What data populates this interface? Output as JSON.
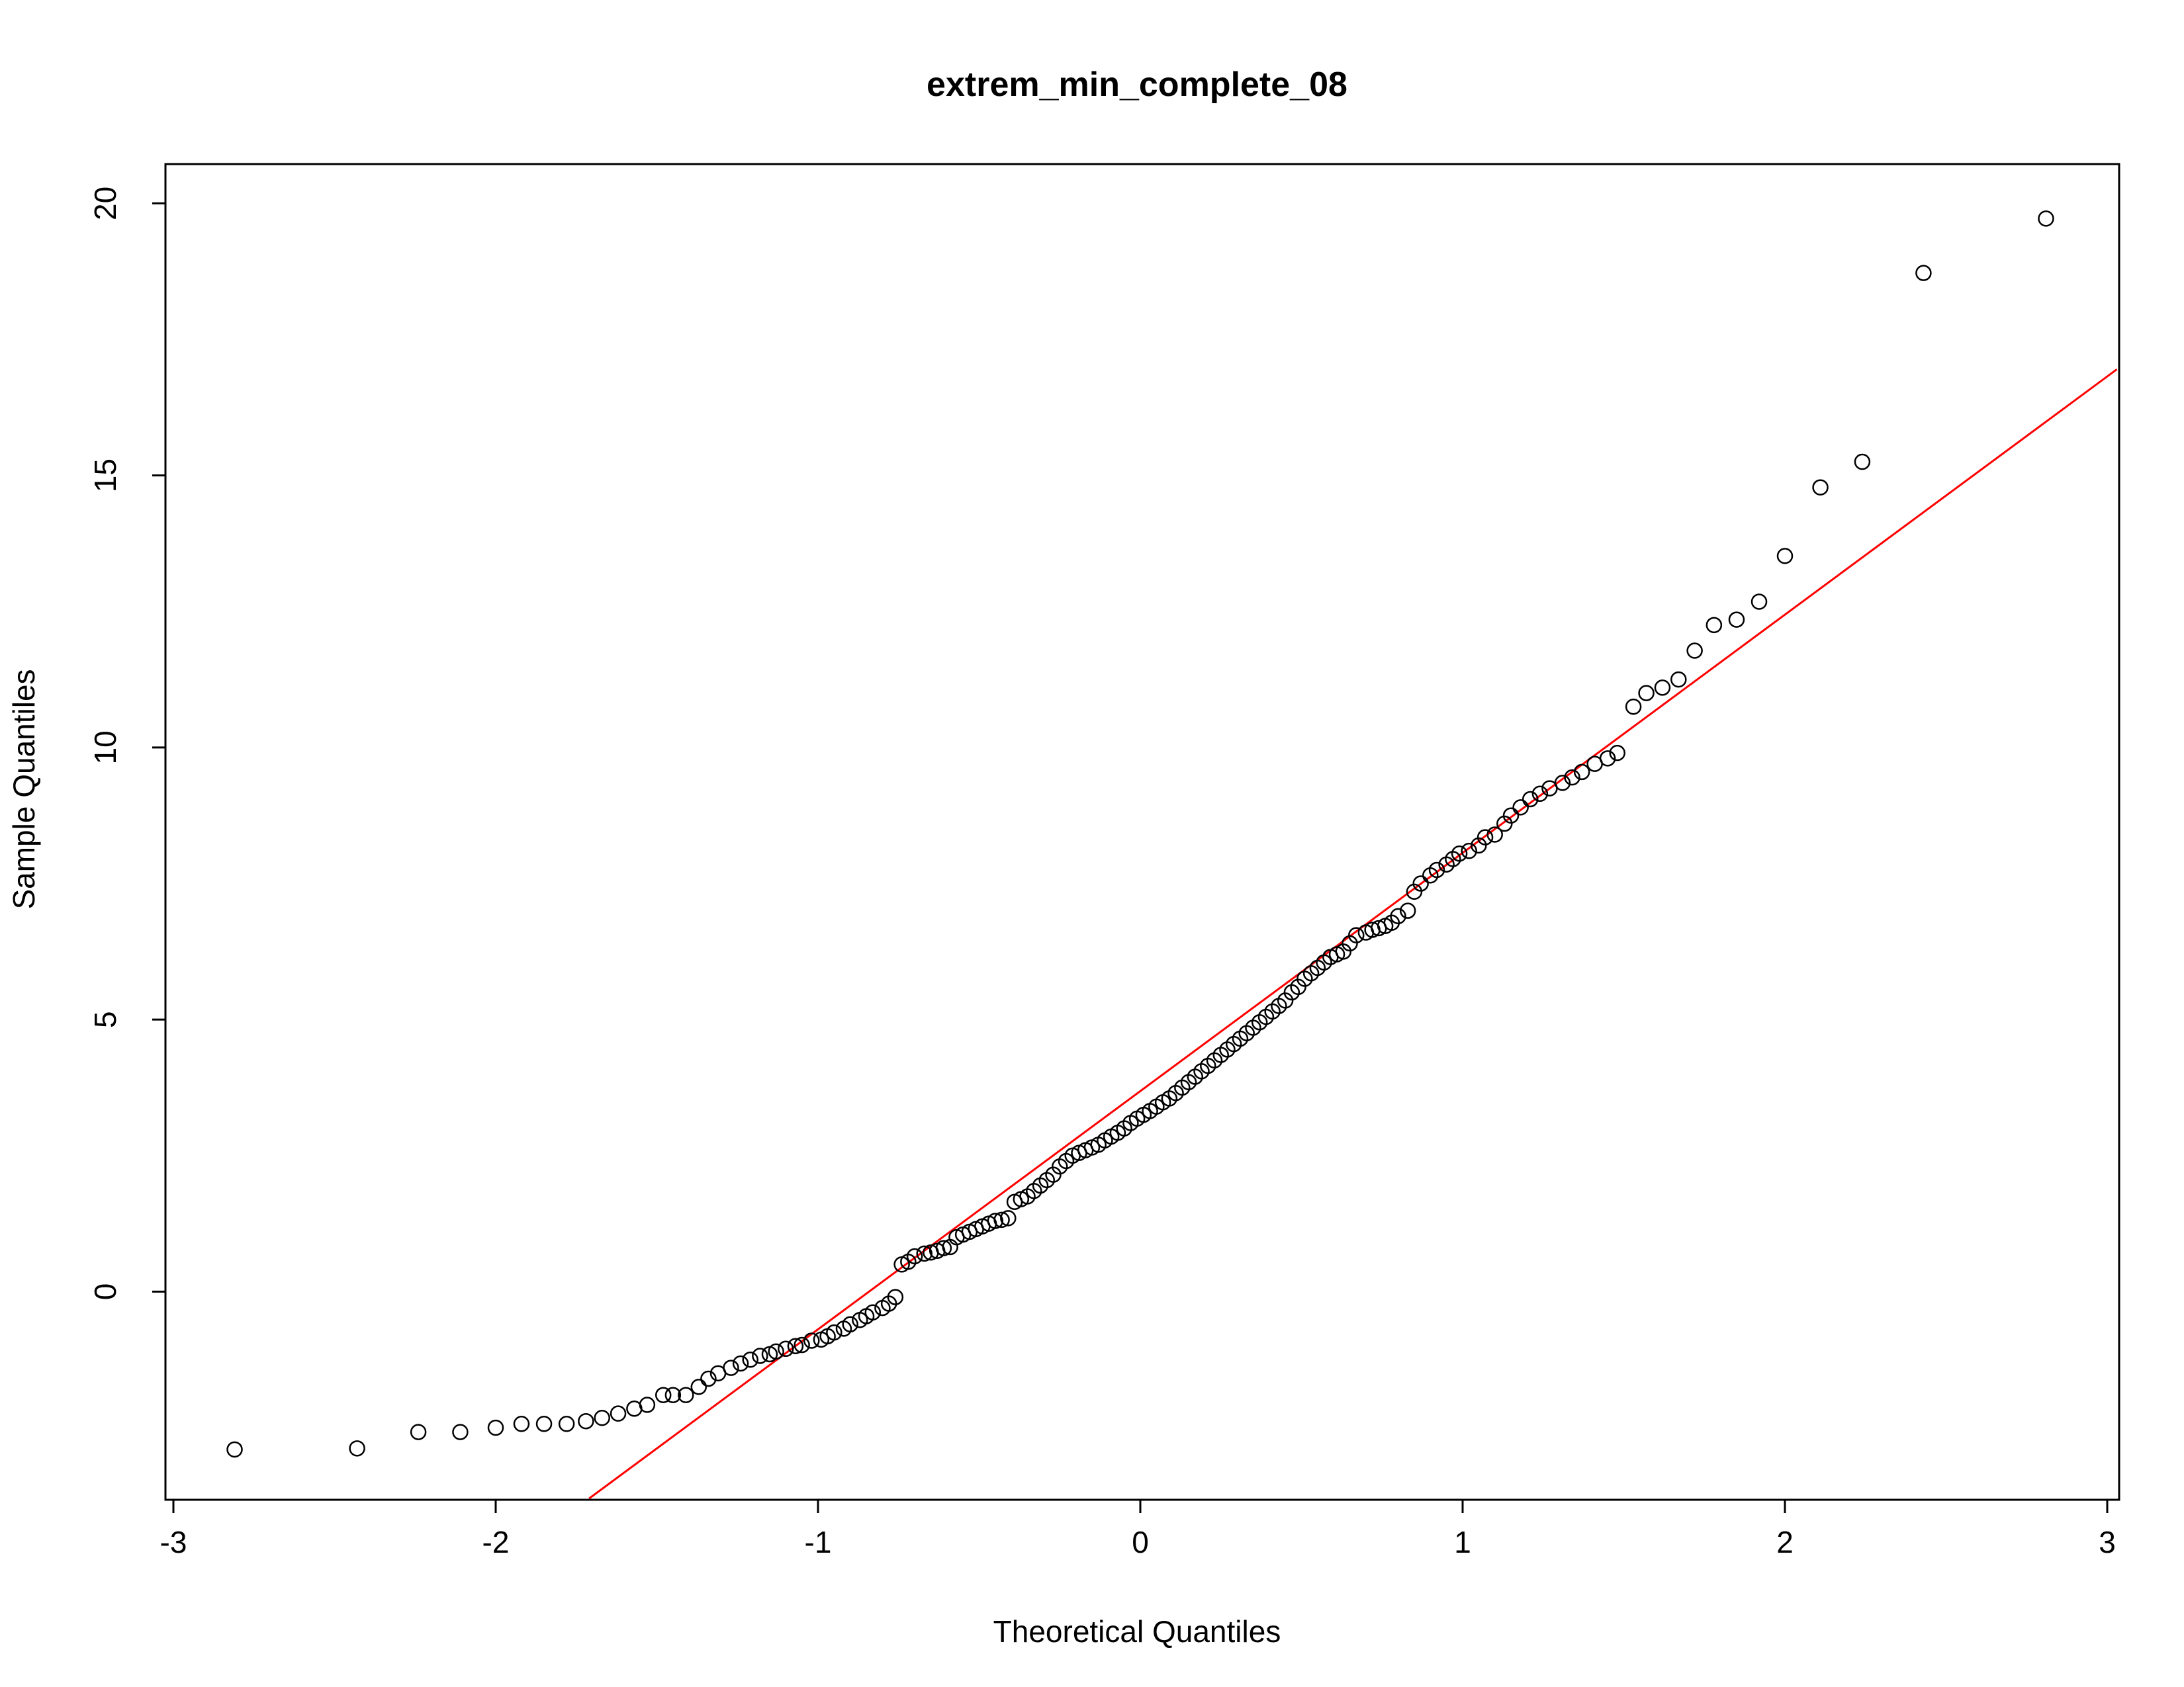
{
  "chart_data": {
    "type": "scatter",
    "plot_kind": "normal-qq",
    "title": "extrem_min_complete_08",
    "xlabel": "Theoretical Quantiles",
    "ylabel": "Sample Quantiles",
    "xlim": [
      -3.0,
      3.0
    ],
    "ylim": [
      -3.8,
      20.6
    ],
    "x_ticks": [
      -3,
      -2,
      -1,
      0,
      1,
      2,
      3
    ],
    "y_ticks": [
      0,
      5,
      10,
      15,
      20
    ],
    "x_tick_labels": [
      "-3",
      "-2",
      "-1",
      "0",
      "1",
      "2",
      "3"
    ],
    "y_tick_labels": [
      "0",
      "5",
      "10",
      "15",
      "20"
    ],
    "grid": false,
    "legend": "none",
    "colors": {
      "points": "#000000",
      "line": "#ff0000",
      "frame": "#000000"
    },
    "reference_line": {
      "x": [
        -1.71,
        3.03
      ],
      "y": [
        -3.8,
        16.95
      ]
    },
    "points": [
      [
        -2.81,
        -2.9
      ],
      [
        -2.43,
        -2.88
      ],
      [
        -2.24,
        -2.58
      ],
      [
        -2.11,
        -2.58
      ],
      [
        -2.0,
        -2.5
      ],
      [
        -1.92,
        -2.43
      ],
      [
        -1.85,
        -2.43
      ],
      [
        -1.78,
        -2.43
      ],
      [
        -1.72,
        -2.38
      ],
      [
        -1.67,
        -2.32
      ],
      [
        -1.62,
        -2.24
      ],
      [
        -1.57,
        -2.15
      ],
      [
        -1.53,
        -2.08
      ],
      [
        -1.48,
        -1.9
      ],
      [
        -1.45,
        -1.9
      ],
      [
        -1.41,
        -1.9
      ],
      [
        -1.37,
        -1.75
      ],
      [
        -1.34,
        -1.6
      ],
      [
        -1.31,
        -1.5
      ],
      [
        -1.27,
        -1.4
      ],
      [
        -1.24,
        -1.32
      ],
      [
        -1.21,
        -1.25
      ],
      [
        -1.18,
        -1.18
      ],
      [
        -1.15,
        -1.15
      ],
      [
        -1.13,
        -1.1
      ],
      [
        -1.1,
        -1.05
      ],
      [
        -1.07,
        -1.0
      ],
      [
        -1.05,
        -0.98
      ],
      [
        -1.02,
        -0.9
      ],
      [
        -0.99,
        -0.88
      ],
      [
        -0.97,
        -0.82
      ],
      [
        -0.95,
        -0.75
      ],
      [
        -0.92,
        -0.68
      ],
      [
        -0.9,
        -0.6
      ],
      [
        -0.87,
        -0.52
      ],
      [
        -0.85,
        -0.45
      ],
      [
        -0.83,
        -0.38
      ],
      [
        -0.8,
        -0.3
      ],
      [
        -0.78,
        -0.22
      ],
      [
        -0.76,
        -0.1
      ],
      [
        -0.74,
        0.5
      ],
      [
        -0.72,
        0.55
      ],
      [
        -0.7,
        0.65
      ],
      [
        -0.67,
        0.7
      ],
      [
        -0.65,
        0.72
      ],
      [
        -0.63,
        0.75
      ],
      [
        -0.61,
        0.8
      ],
      [
        -0.59,
        0.82
      ],
      [
        -0.57,
        1.0
      ],
      [
        -0.55,
        1.05
      ],
      [
        -0.53,
        1.1
      ],
      [
        -0.51,
        1.15
      ],
      [
        -0.49,
        1.2
      ],
      [
        -0.47,
        1.25
      ],
      [
        -0.45,
        1.3
      ],
      [
        -0.43,
        1.32
      ],
      [
        -0.41,
        1.35
      ],
      [
        -0.39,
        1.65
      ],
      [
        -0.37,
        1.7
      ],
      [
        -0.35,
        1.75
      ],
      [
        -0.33,
        1.85
      ],
      [
        -0.31,
        1.95
      ],
      [
        -0.29,
        2.05
      ],
      [
        -0.27,
        2.15
      ],
      [
        -0.25,
        2.3
      ],
      [
        -0.23,
        2.4
      ],
      [
        -0.21,
        2.5
      ],
      [
        -0.19,
        2.55
      ],
      [
        -0.17,
        2.6
      ],
      [
        -0.15,
        2.65
      ],
      [
        -0.13,
        2.7
      ],
      [
        -0.11,
        2.78
      ],
      [
        -0.09,
        2.85
      ],
      [
        -0.07,
        2.92
      ],
      [
        -0.05,
        3.0
      ],
      [
        -0.03,
        3.1
      ],
      [
        -0.01,
        3.18
      ],
      [
        0.01,
        3.25
      ],
      [
        0.03,
        3.32
      ],
      [
        0.05,
        3.4
      ],
      [
        0.07,
        3.48
      ],
      [
        0.09,
        3.55
      ],
      [
        0.11,
        3.65
      ],
      [
        0.13,
        3.75
      ],
      [
        0.15,
        3.85
      ],
      [
        0.17,
        3.95
      ],
      [
        0.19,
        4.05
      ],
      [
        0.21,
        4.15
      ],
      [
        0.23,
        4.25
      ],
      [
        0.25,
        4.35
      ],
      [
        0.27,
        4.45
      ],
      [
        0.29,
        4.55
      ],
      [
        0.31,
        4.65
      ],
      [
        0.33,
        4.75
      ],
      [
        0.35,
        4.85
      ],
      [
        0.37,
        4.95
      ],
      [
        0.39,
        5.05
      ],
      [
        0.41,
        5.15
      ],
      [
        0.43,
        5.25
      ],
      [
        0.45,
        5.35
      ],
      [
        0.47,
        5.5
      ],
      [
        0.49,
        5.6
      ],
      [
        0.51,
        5.75
      ],
      [
        0.53,
        5.85
      ],
      [
        0.55,
        5.95
      ],
      [
        0.57,
        6.05
      ],
      [
        0.59,
        6.15
      ],
      [
        0.61,
        6.2
      ],
      [
        0.63,
        6.25
      ],
      [
        0.65,
        6.4
      ],
      [
        0.67,
        6.55
      ],
      [
        0.7,
        6.6
      ],
      [
        0.72,
        6.65
      ],
      [
        0.74,
        6.68
      ],
      [
        0.76,
        6.72
      ],
      [
        0.78,
        6.78
      ],
      [
        0.8,
        6.9
      ],
      [
        0.83,
        7.0
      ],
      [
        0.85,
        7.35
      ],
      [
        0.87,
        7.5
      ],
      [
        0.9,
        7.65
      ],
      [
        0.92,
        7.75
      ],
      [
        0.95,
        7.85
      ],
      [
        0.97,
        7.95
      ],
      [
        0.99,
        8.05
      ],
      [
        1.02,
        8.1
      ],
      [
        1.05,
        8.2
      ],
      [
        1.07,
        8.35
      ],
      [
        1.1,
        8.4
      ],
      [
        1.13,
        8.6
      ],
      [
        1.15,
        8.75
      ],
      [
        1.18,
        8.9
      ],
      [
        1.21,
        9.05
      ],
      [
        1.24,
        9.15
      ],
      [
        1.27,
        9.25
      ],
      [
        1.31,
        9.35
      ],
      [
        1.34,
        9.45
      ],
      [
        1.37,
        9.55
      ],
      [
        1.41,
        9.7
      ],
      [
        1.45,
        9.8
      ],
      [
        1.48,
        9.9
      ],
      [
        1.53,
        10.75
      ],
      [
        1.57,
        11.0
      ],
      [
        1.62,
        11.1
      ],
      [
        1.67,
        11.25
      ],
      [
        1.72,
        11.78
      ],
      [
        1.78,
        12.25
      ],
      [
        1.85,
        12.35
      ],
      [
        1.92,
        12.68
      ],
      [
        2.0,
        13.52
      ],
      [
        2.11,
        14.78
      ],
      [
        2.24,
        15.25
      ],
      [
        2.43,
        18.72
      ],
      [
        2.81,
        19.72
      ]
    ]
  }
}
